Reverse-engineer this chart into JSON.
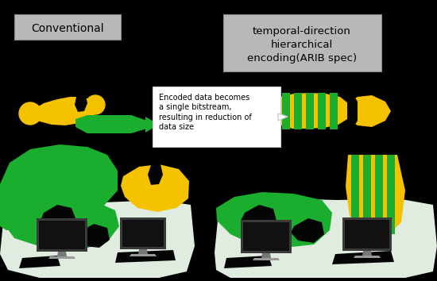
{
  "bg_color": "#000000",
  "label_conventional": "Conventional",
  "label_hierarchical": "temporal-direction\nhierarchical\nencoding(ARIB spec)",
  "label_annotation": "Encoded data becomes\na single bitstream,\nresulting in reduction of\ndata size",
  "green": "#1aad2e",
  "yellow": "#f5c200",
  "dark": "#050505",
  "white": "#ffffff",
  "gray_box": "#b8b8b8",
  "gray_light_bg": "#e0ece0",
  "gray_tv_dark": "#2a2a2a",
  "gray_tv_mid": "#555555",
  "gray_stand": "#888888"
}
